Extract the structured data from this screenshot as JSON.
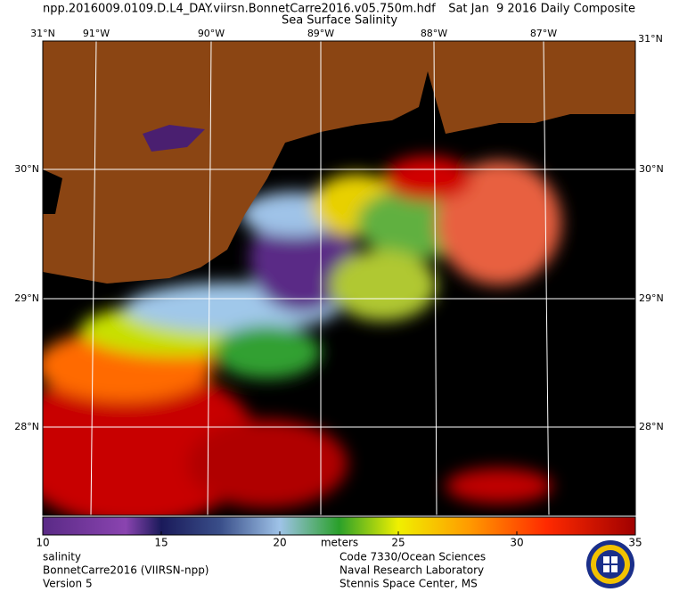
{
  "header": {
    "filename": "npp.2016009.0109.D.L4_DAY.viirsn.BonnetCarre2016.v05.750m.hdf",
    "date": "Sat Jan  9 2016 Daily Composite",
    "title": "Sea Surface Salinity"
  },
  "map": {
    "longitude_labels": [
      "91°W",
      "90°W",
      "89°W",
      "88°W",
      "87°W"
    ],
    "latitude_labels": [
      "30°N",
      "29°N",
      "28°N"
    ],
    "corner_label": "31°N"
  },
  "colorbar": {
    "range": [
      10,
      35
    ],
    "ticks": [
      10,
      15,
      20,
      25,
      30,
      35
    ],
    "label": "meters"
  },
  "footer": {
    "left": [
      "salinity",
      "BonnetCarre2016 (VIIRSN-npp)",
      "Version 5"
    ],
    "right": [
      "Code 7330/Ocean Sciences",
      "Naval Research Laboratory",
      "Stennis Space Center, MS"
    ]
  }
}
